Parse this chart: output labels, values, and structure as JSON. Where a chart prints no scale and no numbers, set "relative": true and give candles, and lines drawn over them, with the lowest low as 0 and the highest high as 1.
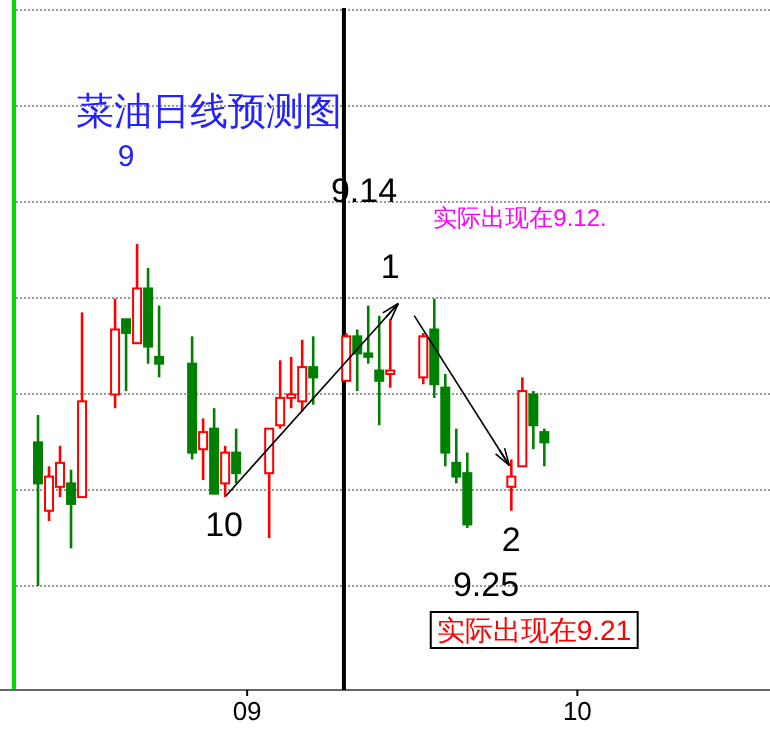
{
  "chart_data": {
    "type": "candlestick",
    "title": "菜油日线预测图",
    "relative": true,
    "grid": "y",
    "tick_labels": "x",
    "x": [
      "--08-13",
      "--08-14",
      "--08-15",
      "--08-16",
      "--08-17",
      "--08-20",
      "--08-21",
      "--08-22",
      "--08-23",
      "--08-24",
      "--08-27",
      "--08-28",
      "--08-29",
      "--08-30",
      "--08-31",
      "--09-03",
      "--09-04",
      "--09-05",
      "--09-06",
      "--09-07",
      "--09-10",
      "--09-11",
      "--09-12",
      "--09-13",
      "--09-14",
      "--09-17",
      "--09-18",
      "--09-19",
      "--09-20",
      "--09-21",
      "--09-25",
      "--09-26",
      "--09-27",
      "--09-28"
    ],
    "ohlc": [
      [
        0.42,
        0.5,
        0.0,
        0.3
      ],
      [
        0.22,
        0.35,
        0.19,
        0.32
      ],
      [
        0.29,
        0.41,
        0.26,
        0.36
      ],
      [
        0.3,
        0.34,
        0.11,
        0.24
      ],
      [
        0.26,
        0.8,
        0.26,
        0.54
      ],
      [
        0.56,
        0.84,
        0.52,
        0.75
      ],
      [
        0.78,
        0.78,
        0.57,
        0.74
      ],
      [
        0.71,
        1.0,
        0.71,
        0.87
      ],
      [
        0.87,
        0.93,
        0.65,
        0.7
      ],
      [
        0.67,
        0.82,
        0.61,
        0.65
      ],
      [
        0.65,
        0.73,
        0.37,
        0.39
      ],
      [
        0.4,
        0.49,
        0.31,
        0.45
      ],
      [
        0.46,
        0.52,
        0.27,
        0.27
      ],
      [
        0.3,
        0.41,
        0.26,
        0.39
      ],
      [
        0.39,
        0.46,
        0.3,
        0.33
      ],
      [
        0.33,
        0.46,
        0.14,
        0.46
      ],
      [
        0.47,
        0.66,
        0.46,
        0.55
      ],
      [
        0.55,
        0.67,
        0.52,
        0.56
      ],
      [
        0.54,
        0.72,
        0.51,
        0.64
      ],
      [
        0.64,
        0.73,
        0.53,
        0.61
      ],
      [
        0.6,
        0.74,
        0.6,
        0.73
      ],
      [
        0.73,
        0.75,
        0.57,
        0.68
      ],
      [
        0.68,
        0.82,
        0.65,
        0.67
      ],
      [
        0.63,
        0.79,
        0.47,
        0.6
      ],
      [
        0.62,
        0.78,
        0.58,
        0.63
      ],
      [
        0.61,
        0.74,
        0.59,
        0.73
      ],
      [
        0.75,
        0.84,
        0.55,
        0.59
      ],
      [
        0.58,
        0.62,
        0.35,
        0.39
      ],
      [
        0.36,
        0.46,
        0.3,
        0.32
      ],
      [
        0.33,
        0.39,
        0.17,
        0.18
      ],
      [
        0.29,
        0.37,
        0.22,
        0.32
      ],
      [
        0.35,
        0.61,
        0.35,
        0.57
      ],
      [
        0.56,
        0.57,
        0.4,
        0.47
      ],
      [
        0.45,
        0.46,
        0.35,
        0.42
      ]
    ],
    "colors": [
      "#008000",
      "#ff0000",
      "#ff0000",
      "#008000",
      "#ff0000",
      "#ff0000",
      "#008000",
      "#ff0000",
      "#008000",
      "#008000",
      "#008000",
      "#ff0000",
      "#008000",
      "#ff0000",
      "#008000",
      "#ff0000",
      "#ff0000",
      "#ff0000",
      "#ff0000",
      "#008000",
      "#ff0000",
      "#008000",
      "#008000",
      "#008000",
      "#ff0000",
      "#ff0000",
      "#008000",
      "#008000",
      "#008000",
      "#008000",
      "#ff0000",
      "#ff0000",
      "#008000",
      "#008000"
    ],
    "xlim": [
      "--08-11",
      "--10-18T12:00"
    ],
    "xticks": [
      {
        "value": "--09-01",
        "label": "09"
      },
      {
        "value": "--10-01",
        "label": "10"
      }
    ],
    "ref_lines": [
      {
        "axis": "x",
        "value": "--09-09T19:00",
        "color": "#000000"
      }
    ],
    "annotations": [
      "9",
      {
        "text": "10",
        "x": "--08-29",
        "y": 0.27
      },
      {
        "text": "1",
        "x": "--09-12",
        "y": 0.82
      },
      {
        "text": "2",
        "x": "--09-25",
        "y": 0.37
      },
      "9.14",
      "9.25",
      "实际出现在9.12.",
      "实际出现在9.21"
    ]
  }
}
